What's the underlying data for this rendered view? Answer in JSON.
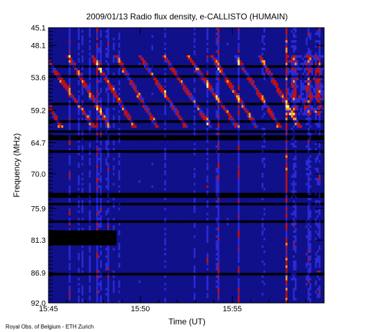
{
  "chart_data": {
    "type": "heatmap",
    "title": "2009/01/13  Radio flux density, e-CALLISTO (HUMAIN)",
    "xlabel": "Time (UT)",
    "ylabel": "Frequency (MHz)",
    "x_ticks": [
      "15:45",
      "15:50",
      "15:55"
    ],
    "y_ticks": [
      "45.1",
      "48.1",
      "53.6",
      "59.2",
      "64.7",
      "70.0",
      "75.9",
      "81.3",
      "86.9",
      "92.0"
    ],
    "x_range": [
      "15:45",
      "16:00"
    ],
    "ylim": [
      45.1,
      92.0
    ],
    "y_inverted": true,
    "colormap": [
      "#000000",
      "#10108a",
      "#2a2ad8",
      "#c01010",
      "#ff9a20",
      "#ffff80"
    ],
    "credit": "Royal Obs. of Belgium - ETH Zurich"
  }
}
